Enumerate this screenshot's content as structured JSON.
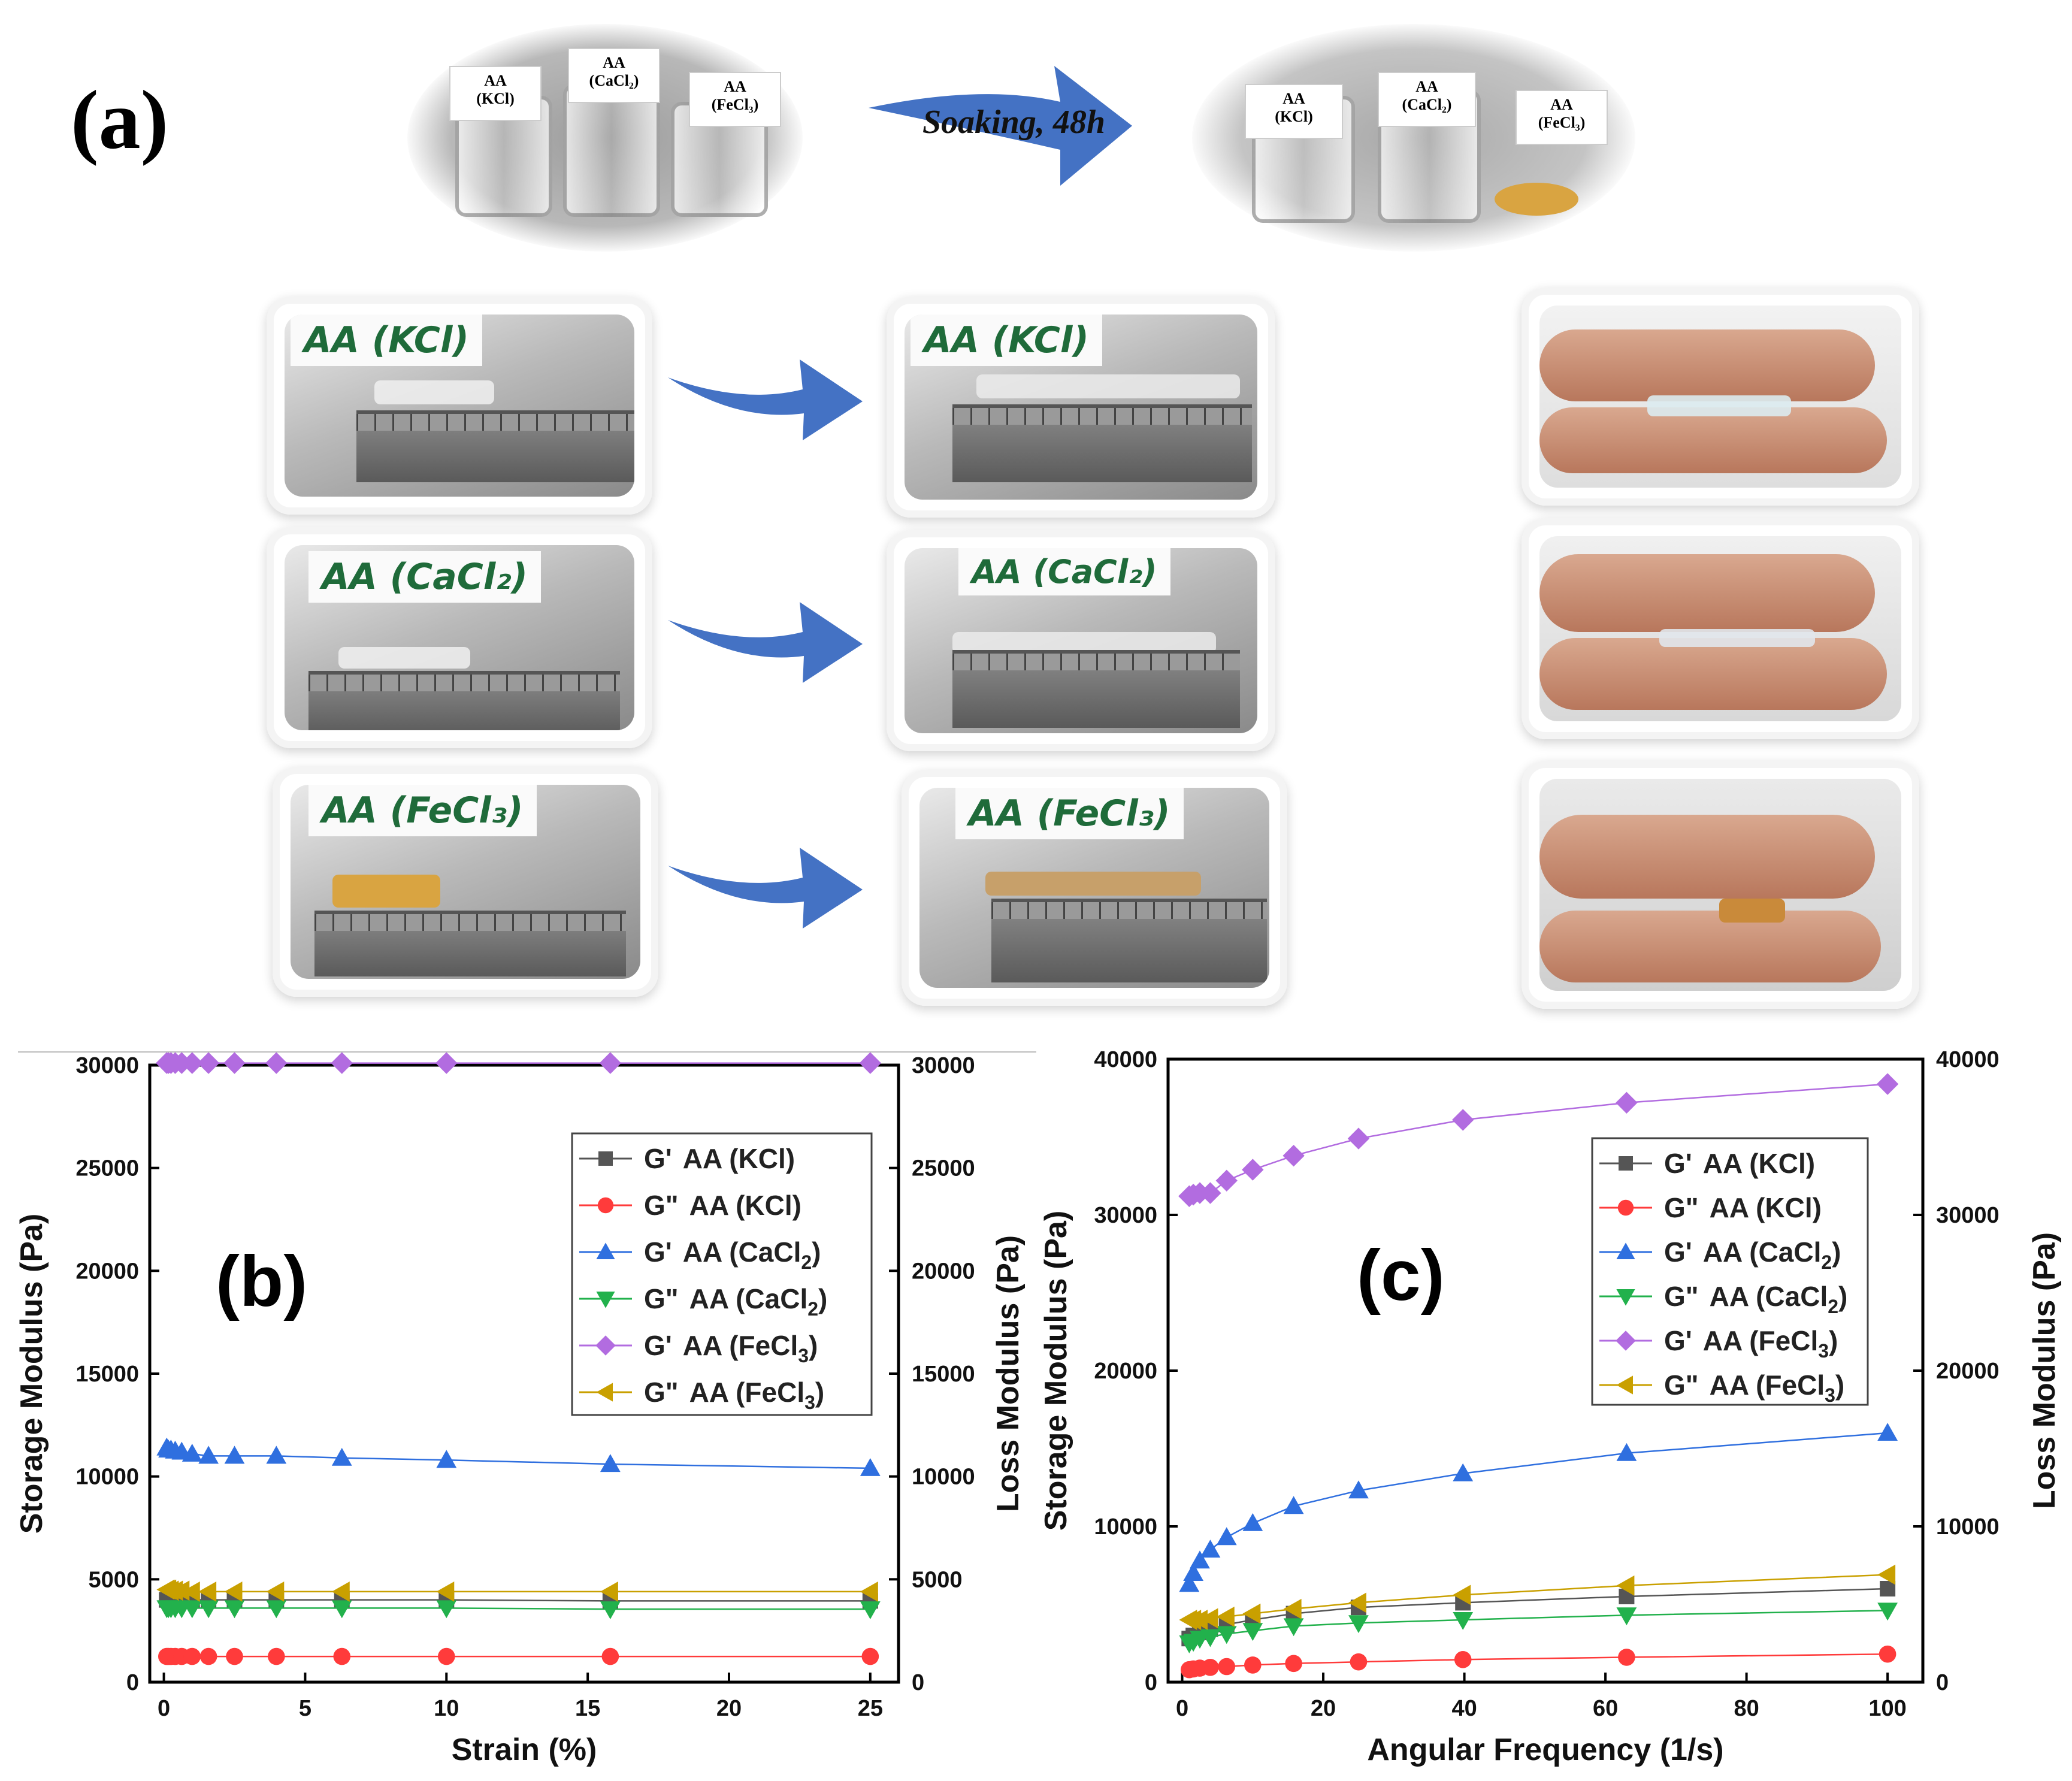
{
  "panel_a": {
    "letter": "(a)",
    "arrow_text": "Soaking, 48h",
    "vials_before": [
      {
        "line1": "AA",
        "line2": "(KCl)"
      },
      {
        "line1": "AA",
        "line2": "(CaCl₂)"
      },
      {
        "line1": "AA",
        "line2": "(FeCl₃)"
      }
    ],
    "vials_after": [
      {
        "line1": "AA",
        "line2": "(KCl)"
      },
      {
        "line1": "AA",
        "line2": "(CaCl₂)"
      },
      {
        "line1": "AA",
        "line2": "(FeCl₃)"
      }
    ],
    "handwritten_labels": [
      "AA (KCl)",
      "AA (CaCl₂)",
      "AA (FeCl₃)"
    ],
    "colors": {
      "arrow": "#4472c4",
      "fecl3_film": "#d9a441"
    }
  },
  "legend": {
    "entries": [
      {
        "prefix": "G'",
        "name": "AA (KCl)",
        "sub": "",
        "close": ""
      },
      {
        "prefix": "G\"",
        "name": "AA (KCl)",
        "sub": "",
        "close": ""
      },
      {
        "prefix": "G'",
        "name": "AA (CaCl",
        "sub": "2",
        "close": ")"
      },
      {
        "prefix": "G\"",
        "name": "AA (CaCl",
        "sub": "2",
        "close": ")"
      },
      {
        "prefix": "G'",
        "name": "AA (FeCl",
        "sub": "3",
        "close": ")"
      },
      {
        "prefix": "G\"",
        "name": "AA (FeCl",
        "sub": "3",
        "close": ")"
      }
    ]
  },
  "chart_data": [
    {
      "panel": "(b)",
      "type": "line",
      "xlabel": "Strain (%)",
      "ylabel": "Storage Modulus (Pa)",
      "y2label": "Loss Modulus (Pa)",
      "xlim": [
        -0.5,
        26
      ],
      "ylim": [
        0,
        30000
      ],
      "xticks": [
        0,
        5,
        10,
        15,
        20,
        25
      ],
      "yticks": [
        0,
        5000,
        10000,
        15000,
        20000,
        25000,
        30000
      ],
      "legend_position": "top-right",
      "x": [
        0.1,
        0.16,
        0.25,
        0.4,
        0.63,
        1,
        1.58,
        2.5,
        3.98,
        6.3,
        10,
        15.8,
        25
      ],
      "series": [
        {
          "name": "G' AA (KCl)",
          "marker": "square",
          "color": "#555555",
          "values": [
            4000,
            4000,
            4000,
            4000,
            4000,
            4000,
            4000,
            4000,
            4000,
            4000,
            4000,
            3950,
            3950
          ]
        },
        {
          "name": "G\" AA (KCl)",
          "marker": "circle",
          "color": "#ff3b3b",
          "values": [
            1250,
            1250,
            1250,
            1250,
            1250,
            1250,
            1250,
            1250,
            1250,
            1250,
            1250,
            1250,
            1250
          ]
        },
        {
          "name": "G' AA (CaCl2)",
          "marker": "triangle-up",
          "color": "#2f6fdf",
          "values": [
            11400,
            11300,
            11300,
            11250,
            11200,
            11100,
            11000,
            11000,
            11000,
            10900,
            10800,
            10600,
            10400
          ]
        },
        {
          "name": "G\" AA (CaCl2)",
          "marker": "triangle-down",
          "color": "#22b14c",
          "values": [
            3600,
            3600,
            3600,
            3600,
            3600,
            3600,
            3600,
            3600,
            3600,
            3600,
            3600,
            3550,
            3550
          ]
        },
        {
          "name": "G' AA (FeCl3)",
          "marker": "diamond",
          "color": "#b26ce0",
          "values": [
            30100,
            30100,
            30100,
            30100,
            30100,
            30100,
            30100,
            30100,
            30100,
            30100,
            30100,
            30100,
            30100
          ]
        },
        {
          "name": "G\" AA (FeCl3)",
          "marker": "triangle-left",
          "color": "#c9a000",
          "values": [
            4500,
            4500,
            4450,
            4450,
            4450,
            4400,
            4400,
            4400,
            4400,
            4400,
            4400,
            4400,
            4400
          ]
        }
      ]
    },
    {
      "panel": "(c)",
      "type": "line",
      "xlabel": "Angular Frequency (1/s)",
      "ylabel": "Storage Modulus (Pa)",
      "y2label": "Loss Modulus (Pa)",
      "xlim": [
        -2,
        105
      ],
      "ylim": [
        0,
        40000
      ],
      "xticks": [
        0,
        20,
        40,
        60,
        80,
        100
      ],
      "yticks": [
        0,
        10000,
        20000,
        30000,
        40000
      ],
      "legend_position": "top-right",
      "x": [
        1,
        1.58,
        2.5,
        3.98,
        6.3,
        10,
        15.8,
        25,
        39.8,
        63,
        100
      ],
      "series": [
        {
          "name": "G' AA (KCl)",
          "marker": "square",
          "color": "#555555",
          "values": [
            2800,
            3000,
            3200,
            3400,
            3700,
            4000,
            4400,
            4800,
            5100,
            5500,
            6000
          ]
        },
        {
          "name": "G\" AA (KCl)",
          "marker": "circle",
          "color": "#ff3b3b",
          "values": [
            800,
            850,
            900,
            950,
            1000,
            1100,
            1200,
            1300,
            1450,
            1600,
            1800
          ]
        },
        {
          "name": "G' AA (CaCl2)",
          "marker": "triangle-up",
          "color": "#2f6fdf",
          "values": [
            6300,
            7000,
            7800,
            8500,
            9300,
            10200,
            11300,
            12300,
            13400,
            14700,
            16000
          ]
        },
        {
          "name": "G\" AA (CaCl2)",
          "marker": "triangle-down",
          "color": "#22b14c",
          "values": [
            2500,
            2600,
            2800,
            2900,
            3100,
            3300,
            3600,
            3800,
            4000,
            4300,
            4600
          ]
        },
        {
          "name": "G' AA (FeCl3)",
          "marker": "diamond",
          "color": "#b26ce0",
          "values": [
            31200,
            31300,
            31400,
            31400,
            32200,
            32900,
            33800,
            34900,
            36100,
            37200,
            38400
          ]
        },
        {
          "name": "G\" AA (FeCl3)",
          "marker": "triangle-left",
          "color": "#c9a000",
          "values": [
            4000,
            4000,
            4000,
            4100,
            4200,
            4400,
            4700,
            5100,
            5600,
            6200,
            6900
          ]
        }
      ]
    }
  ]
}
